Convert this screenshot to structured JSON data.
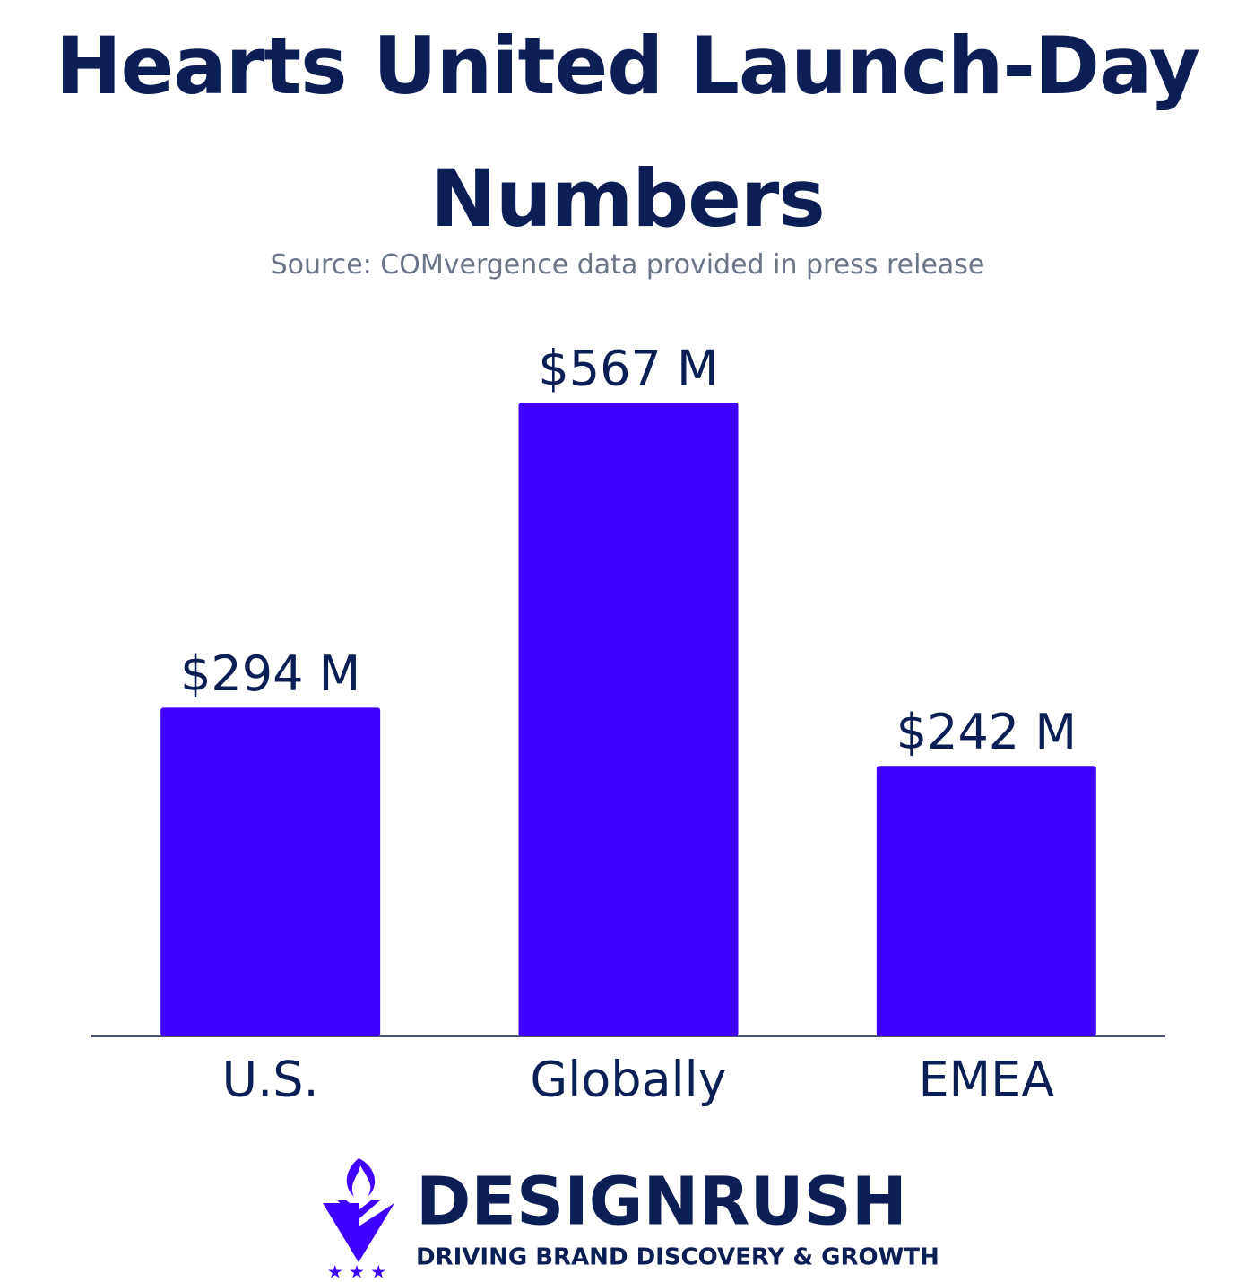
{
  "chart_data": {
    "type": "bar",
    "title": "Hearts United Launch-Day Numbers",
    "subtitle": "Source: COMvergence data provided in press release",
    "categories": [
      "U.S.",
      "Globally",
      "EMEA"
    ],
    "values": [
      294,
      567,
      242
    ],
    "value_labels": [
      "$294 M",
      "$567 M",
      "$242 M"
    ],
    "color": "#4000ff"
  },
  "logo": {
    "name": "DESIGNRUSH",
    "tagline": "DRIVING BRAND DISCOVERY & GROWTH"
  }
}
